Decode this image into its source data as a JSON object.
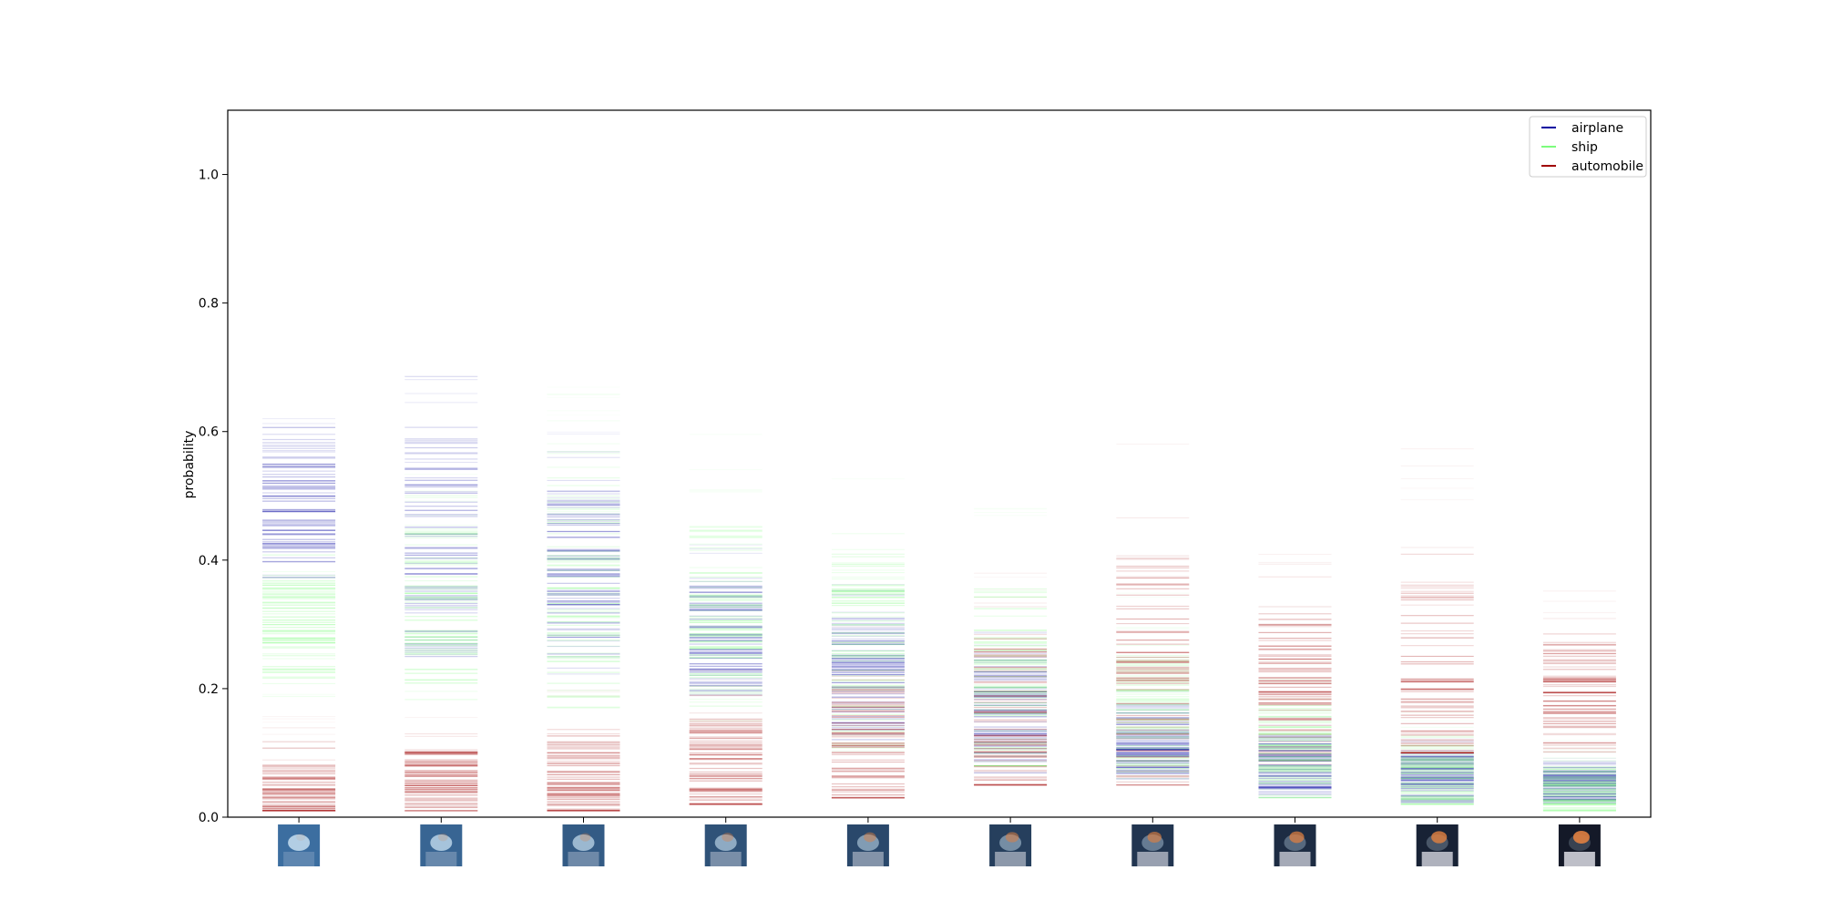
{
  "chart_data": {
    "type": "strip",
    "title": "",
    "xlabel": "",
    "ylabel": "probability",
    "ylim": [
      0,
      1.1
    ],
    "yticks": [
      0.0,
      0.2,
      0.4,
      0.6,
      0.8,
      1.0
    ],
    "ytick_labels": [
      "0.0",
      "0.2",
      "0.4",
      "0.6",
      "0.8",
      "1.0"
    ],
    "grid": false,
    "legend_position": "top-right",
    "n_steps": 10,
    "x_tick_images": [
      "interpolation-thumbnail",
      "interpolation-thumbnail",
      "interpolation-thumbnail",
      "interpolation-thumbnail",
      "interpolation-thumbnail",
      "interpolation-thumbnail",
      "interpolation-thumbnail",
      "interpolation-thumbnail",
      "interpolation-thumbnail",
      "interpolation-thumbnail"
    ],
    "series": [
      {
        "name": "airplane",
        "color": "#0000a0",
        "min": [
          0.35,
          0.2,
          0.22,
          0.18,
          0.1,
          0.06,
          0.05,
          0.03,
          0.02,
          0.02
        ],
        "max": [
          0.66,
          0.69,
          0.6,
          0.44,
          0.37,
          0.3,
          0.2,
          0.16,
          0.13,
          0.1
        ],
        "center": [
          0.48,
          0.42,
          0.38,
          0.28,
          0.22,
          0.17,
          0.11,
          0.08,
          0.06,
          0.05
        ]
      },
      {
        "name": "ship",
        "color": "#7cfc7c",
        "min": [
          0.18,
          0.18,
          0.17,
          0.15,
          0.1,
          0.08,
          0.06,
          0.03,
          0.02,
          0.01
        ],
        "max": [
          0.42,
          0.55,
          0.68,
          0.6,
          0.55,
          0.53,
          0.35,
          0.25,
          0.17,
          0.12
        ],
        "center": [
          0.3,
          0.32,
          0.33,
          0.3,
          0.26,
          0.21,
          0.15,
          0.1,
          0.06,
          0.04
        ]
      },
      {
        "name": "automobile",
        "color": "#a00000",
        "min": [
          0.01,
          0.01,
          0.01,
          0.02,
          0.03,
          0.05,
          0.05,
          0.08,
          0.1,
          0.1
        ],
        "max": [
          0.16,
          0.17,
          0.2,
          0.25,
          0.3,
          0.38,
          0.59,
          0.42,
          0.6,
          0.36
        ],
        "center": [
          0.04,
          0.05,
          0.06,
          0.08,
          0.11,
          0.15,
          0.22,
          0.2,
          0.2,
          0.18
        ]
      }
    ]
  }
}
